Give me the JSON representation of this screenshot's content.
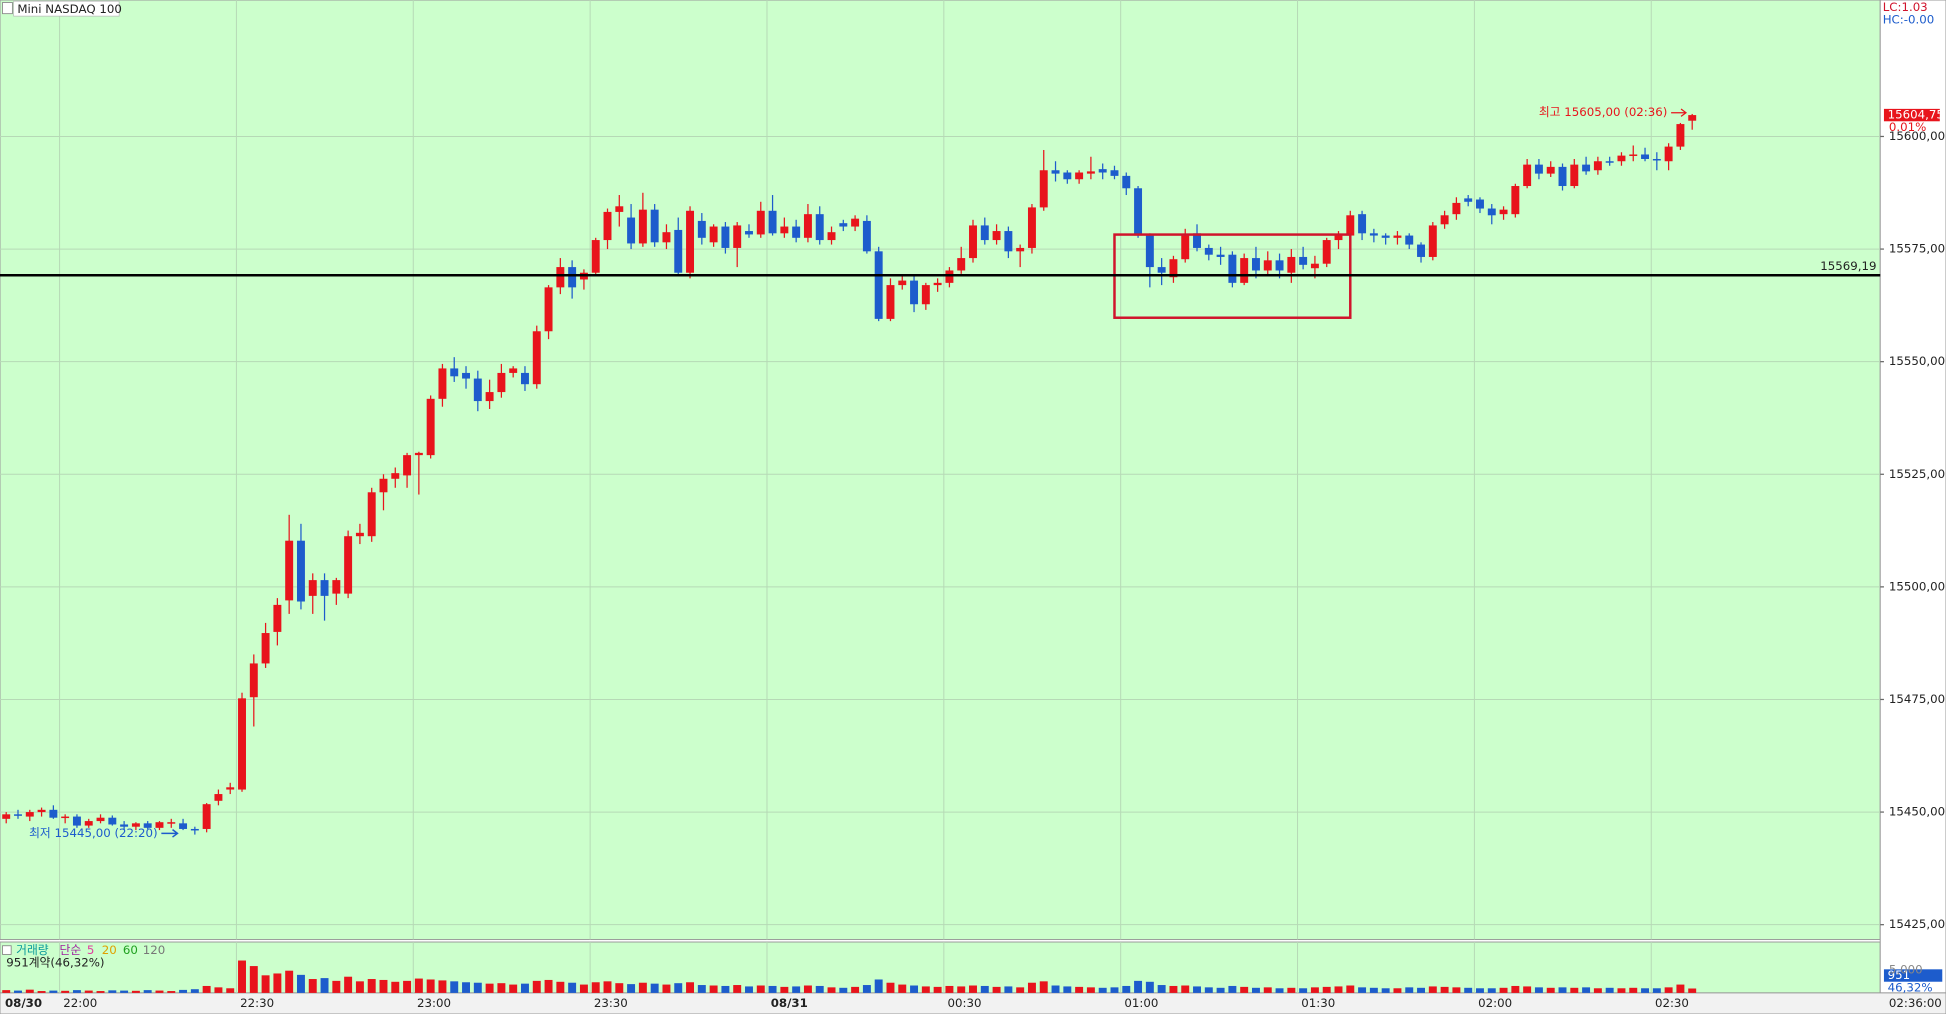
{
  "header": {
    "title": "Mini NASDAQ 100",
    "lc": "LC:1.03",
    "hc": "HC:-0.00"
  },
  "chart_data": {
    "type": "candlestick",
    "categories": [
      "08/30",
      null,
      null,
      null,
      null,
      null,
      "22:00",
      null,
      null,
      null,
      null,
      null,
      null,
      null,
      null,
      null,
      null,
      null,
      null,
      null,
      null,
      "22:30",
      null,
      null,
      null,
      null,
      null,
      null,
      null,
      null,
      null,
      null,
      null,
      null,
      null,
      null,
      "23:00",
      null,
      null,
      null,
      null,
      null,
      null,
      null,
      null,
      null,
      null,
      null,
      null,
      null,
      null,
      "23:30",
      null,
      null,
      null,
      null,
      null,
      null,
      null,
      null,
      null,
      null,
      null,
      null,
      null,
      null,
      "08/31",
      null,
      null,
      null,
      null,
      null,
      null,
      null,
      null,
      null,
      null,
      null,
      null,
      null,
      null,
      "00:30",
      null,
      null,
      null,
      null,
      null,
      null,
      null,
      null,
      null,
      null,
      null,
      null,
      null,
      null,
      "01:00",
      null,
      null,
      null,
      null,
      null,
      null,
      null,
      null,
      null,
      null,
      null,
      null,
      null,
      null,
      "01:30",
      null,
      null,
      null,
      null,
      null,
      null,
      null,
      null,
      null,
      null,
      null,
      null,
      null,
      null,
      "02:00",
      null,
      null,
      null,
      null,
      null,
      null,
      null,
      null,
      null,
      null,
      null,
      null,
      null,
      null,
      "02:30",
      null,
      null
    ],
    "end_time_label": "02:36:00",
    "open": [
      15448.5,
      15449.5,
      15449,
      15450,
      15450.5,
      15448.75,
      15449,
      15447,
      15448,
      15448.75,
      15447.25,
      15446.75,
      15447.5,
      15446.5,
      15447.75,
      15447.5,
      15446.25,
      15446.25,
      15452.5,
      15455,
      15455,
      15475.5,
      15483,
      15490,
      15497,
      15510.25,
      15498,
      15501.5,
      15498.5,
      15498.5,
      15511.25,
      15511.25,
      15521,
      15524,
      15524.75,
      15529.25,
      15529.25,
      15541.75,
      15548.5,
      15547.5,
      15546.25,
      15541.25,
      15543.25,
      15547.5,
      15547.5,
      15545,
      15556.75,
      15566.5,
      15571,
      15568.25,
      15569.75,
      15577,
      15583.25,
      15582,
      15576.25,
      15583.75,
      15576.5,
      15579.25,
      15569.75,
      15581.25,
      15576.5,
      15580,
      15575.25,
      15579,
      15578.25,
      15583.5,
      15578.5,
      15580,
      15577.5,
      15582.75,
      15577,
      15580.75,
      15580,
      15581.25,
      15574.5,
      15559.5,
      15567,
      15568,
      15562.75,
      15567,
      15567.5,
      15570.25,
      15573,
      15580.25,
      15577,
      15579,
      15574.5,
      15575.25,
      15584.25,
      15592.5,
      15592,
      15590.5,
      15591.75,
      15592.75,
      15592.5,
      15591.25,
      15588.5,
      15578,
      15571,
      15568.75,
      15572.75,
      15578.5,
      15575.25,
      15573.75,
      15573.75,
      15567.5,
      15573,
      15570.25,
      15572.5,
      15569.75,
      15573.25,
      15570.75,
      15571.75,
      15577,
      15578,
      15582.75,
      15578.5,
      15578,
      15577.5,
      15578,
      15576,
      15573.25,
      15580.5,
      15582.75,
      15586.25,
      15586,
      15584,
      15582.75,
      15582.75,
      15589,
      15593.75,
      15591.75,
      15593.25,
      15589,
      15593.75,
      15592.5,
      15594.5,
      15594.5,
      15595.75,
      15596,
      15595,
      15594.5,
      15597.75,
      15603.5
    ],
    "high": [
      15450,
      15450.5,
      15450.5,
      15451,
      15451.5,
      15449.5,
      15449.5,
      15448.5,
      15449.5,
      15449.25,
      15448,
      15447.75,
      15448,
      15448,
      15448.5,
      15448.5,
      15446.75,
      15452,
      15455,
      15456.5,
      15476.5,
      15485,
      15492,
      15497.5,
      15516,
      15514,
      15503,
      15503,
      15502,
      15512.5,
      15514,
      15522,
      15525,
      15526.5,
      15529.75,
      15530,
      15542.5,
      15549.5,
      15551,
      15549,
      15548,
      15546,
      15549.5,
      15549,
      15549,
      15558,
      15567,
      15573,
      15572.5,
      15570.5,
      15577.5,
      15584,
      15587,
      15585,
      15587.5,
      15585,
      15580.5,
      15582,
      15584.5,
      15583,
      15580.5,
      15581,
      15581,
      15580.5,
      15585.5,
      15587,
      15582,
      15581.5,
      15585,
      15584.5,
      15580,
      15581.5,
      15582.5,
      15582.5,
      15575.5,
      15568.5,
      15569,
      15569,
      15567.5,
      15568.5,
      15571,
      15575.5,
      15581.5,
      15582,
      15580.5,
      15580,
      15576,
      15585,
      15597,
      15594.5,
      15592.5,
      15592.5,
      15595.5,
      15594,
      15593.5,
      15592,
      15589,
      15578.5,
      15573,
      15573.5,
      15579.5,
      15580.5,
      15576,
      15575.5,
      15574.5,
      15574,
      15575.5,
      15574.5,
      15574,
      15575,
      15575.5,
      15573.5,
      15577.5,
      15579,
      15583.5,
      15583.5,
      15579.5,
      15578.5,
      15579,
      15578.5,
      15576.5,
      15581,
      15583.5,
      15586.5,
      15587,
      15586.5,
      15585,
      15584.5,
      15589.5,
      15595,
      15595,
      15594.5,
      15594,
      15595,
      15595.5,
      15595.5,
      15595.5,
      15596.5,
      15598,
      15597.5,
      15596.5,
      15598.5,
      15603,
      15605
    ],
    "low": [
      15447.5,
      15448.5,
      15448,
      15449,
      15448.5,
      15447.5,
      15446.5,
      15446.5,
      15447.5,
      15447,
      15446,
      15446,
      15446.25,
      15446,
      15446.5,
      15446,
      15445,
      15445.5,
      15451.5,
      15454,
      15454.5,
      15469,
      15482,
      15487,
      15494,
      15495,
      15494,
      15492.5,
      15496,
      15497.5,
      15509.5,
      15510,
      15517,
      15522,
      15522,
      15520.5,
      15528.5,
      15540,
      15545.5,
      15544,
      15539,
      15539.5,
      15542,
      15546.5,
      15543.5,
      15544,
      15555,
      15565,
      15564,
      15566,
      15569,
      15575,
      15580,
      15575,
      15575.5,
      15575.5,
      15575,
      15569,
      15568.5,
      15576,
      15575.5,
      15574,
      15571,
      15577.5,
      15577.5,
      15578,
      15577.5,
      15576.5,
      15576.5,
      15576,
      15576,
      15579,
      15579,
      15574,
      15559,
      15559,
      15566,
      15561,
      15561.5,
      15565.5,
      15566.5,
      15569.5,
      15572,
      15576,
      15576,
      15573,
      15571,
      15574,
      15583.5,
      15590,
      15589.5,
      15589.5,
      15590.5,
      15590.5,
      15590.5,
      15587,
      15577.5,
      15566.5,
      15567,
      15567.5,
      15572,
      15574.5,
      15572.5,
      15571.5,
      15566.5,
      15567,
      15568.5,
      15569,
      15568.5,
      15567.5,
      15570.5,
      15568.5,
      15571,
      15575,
      15577.5,
      15577,
      15576.5,
      15576,
      15576,
      15575,
      15572,
      15572.5,
      15579.5,
      15581.5,
      15584.5,
      15583,
      15580.5,
      15581.5,
      15582,
      15588.5,
      15590.5,
      15591,
      15588,
      15588.5,
      15591.5,
      15591.5,
      15593.5,
      15593.5,
      15594.5,
      15594.5,
      15592.5,
      15592.5,
      15597,
      15601.5
    ],
    "close": [
      15449.5,
      15449.25,
      15450,
      15450.5,
      15448.75,
      15449,
      15447,
      15448,
      15448.75,
      15447.25,
      15446.75,
      15447.5,
      15446.5,
      15447.75,
      15447.75,
      15446.25,
      15446,
      15451.75,
      15454,
      15455.5,
      15475.25,
      15483,
      15489.75,
      15496,
      15510.25,
      15496.75,
      15501.5,
      15498,
      15501.5,
      15511.25,
      15512,
      15521,
      15524,
      15525.25,
      15529.25,
      15529.75,
      15541.75,
      15548.5,
      15546.75,
      15546.25,
      15541.25,
      15543.25,
      15547.5,
      15548.5,
      15545,
      15556.75,
      15566.5,
      15571,
      15566.5,
      15569.75,
      15577,
      15583.25,
      15584.5,
      15576.25,
      15583.75,
      15576.5,
      15578.75,
      15569.75,
      15583.5,
      15577.5,
      15580,
      15575.25,
      15580.25,
      15578.25,
      15583.5,
      15578.5,
      15580,
      15577.5,
      15582.75,
      15577,
      15578.75,
      15580,
      15581.75,
      15574.5,
      15559.5,
      15567,
      15568,
      15562.75,
      15567,
      15567.5,
      15570.25,
      15573,
      15580.25,
      15577,
      15579,
      15574.5,
      15575.25,
      15584.25,
      15592.5,
      15591.75,
      15590.5,
      15592,
      15592.25,
      15592,
      15591.25,
      15588.5,
      15578,
      15571,
      15569.75,
      15572.75,
      15578,
      15575.25,
      15573.75,
      15573.25,
      15567.5,
      15573,
      15570.25,
      15572.5,
      15570.25,
      15573.25,
      15571.5,
      15571.75,
      15577,
      15578,
      15582.5,
      15578.5,
      15578,
      15577.5,
      15578,
      15576,
      15573.25,
      15580.25,
      15582.5,
      15585.25,
      15585.5,
      15584,
      15582.5,
      15583.75,
      15589,
      15593.75,
      15591.75,
      15593.25,
      15589,
      15593.75,
      15592.25,
      15594.5,
      15594.25,
      15595.75,
      15596,
      15595,
      15594.75,
      15597.75,
      15602.75,
      15604.75
    ],
    "up_color": "#e8141c",
    "down_color": "#1d5ccc",
    "ylim": [
      15421.7,
      15630.3
    ],
    "yticks": [
      {
        "value": 15425,
        "label": "15425,00"
      },
      {
        "value": 15450,
        "label": "15450,00"
      },
      {
        "value": 15475,
        "label": "15475,00"
      },
      {
        "value": 15500,
        "label": "15500,00"
      },
      {
        "value": 15525,
        "label": "15525,00"
      },
      {
        "value": 15550,
        "label": "15550,00"
      },
      {
        "value": 15575,
        "label": "15575,00"
      },
      {
        "value": 15600,
        "label": "15600,00"
      }
    ],
    "grid": true,
    "hline": {
      "value": 15569.19,
      "label": "15569,19",
      "color": "#000000"
    },
    "last_price": {
      "value": 15604.75,
      "label": "15604,75"
    },
    "change_label": "0.01%",
    "high_annotation": "최고 15605,00 (02:36)",
    "low_annotation": "최저 15445,00 (22:20)",
    "volume": {
      "title": "거래량",
      "ma_type": "단순",
      "ma_periods": [
        5,
        20,
        60,
        120
      ],
      "info": "951계약(46,32%)",
      "ratio_label": "46,32%",
      "vlim": [
        0,
        11000
      ],
      "vticks": [
        {
          "value": 5000,
          "label": "5,000"
        }
      ],
      "values": [
        600,
        500,
        700,
        400,
        500,
        450,
        600,
        500,
        400,
        550,
        500,
        450,
        600,
        500,
        400,
        650,
        800,
        1500,
        1200,
        1000,
        7000,
        5800,
        3800,
        4200,
        4800,
        3900,
        3000,
        3200,
        2600,
        3500,
        2500,
        3000,
        2800,
        2400,
        2600,
        3100,
        2900,
        2700,
        2500,
        2300,
        2200,
        2000,
        2100,
        1800,
        2000,
        2600,
        2800,
        2400,
        2200,
        1800,
        2300,
        2500,
        2100,
        1900,
        2200,
        2000,
        1800,
        2100,
        2300,
        1700,
        1600,
        1500,
        1700,
        1400,
        1600,
        1500,
        1300,
        1400,
        1600,
        1500,
        1200,
        1100,
        1300,
        1700,
        2900,
        2200,
        1800,
        1600,
        1400,
        1300,
        1500,
        1400,
        1600,
        1500,
        1300,
        1400,
        1200,
        2200,
        2500,
        1600,
        1400,
        1300,
        1200,
        1100,
        1200,
        1500,
        2600,
        2400,
        1700,
        1500,
        1600,
        1400,
        1200,
        1100,
        1500,
        1300,
        1100,
        1200,
        1000,
        1100,
        1000,
        1200,
        1300,
        1400,
        1600,
        1200,
        1100,
        1000,
        1000,
        1200,
        1100,
        1400,
        1300,
        1200,
        1100,
        1000,
        1000,
        1100,
        1500,
        1400,
        1200,
        1100,
        1200,
        1100,
        1200,
        1000,
        1100,
        1000,
        1100,
        1000,
        1000,
        1200,
        1800,
        951
      ]
    }
  }
}
